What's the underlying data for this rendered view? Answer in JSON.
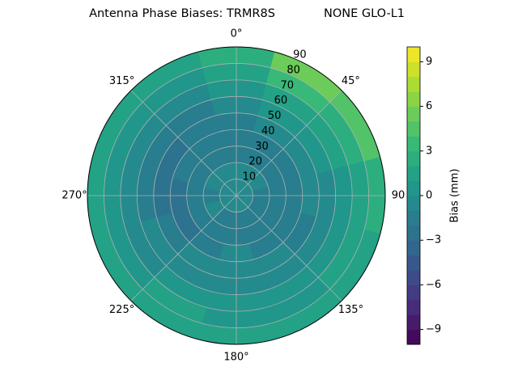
{
  "chart_data": {
    "type": "polar-contour",
    "title": "Antenna Phase Biases: TRMR8S",
    "subtitle": "NONE GLO-L1",
    "rlim": [
      0,
      90
    ],
    "rticks": [
      10,
      20,
      30,
      40,
      50,
      60,
      70,
      80,
      90
    ],
    "thetaticks": [
      {
        "value": 0,
        "label": "0°"
      },
      {
        "value": 45,
        "label": "45°"
      },
      {
        "value": 90,
        "label": "90"
      },
      {
        "value": 135,
        "label": "135°"
      },
      {
        "value": 180,
        "label": "180°"
      },
      {
        "value": 225,
        "label": "225°"
      },
      {
        "value": 270,
        "label": "270°"
      },
      {
        "value": 315,
        "label": "315°"
      }
    ],
    "azimuths": [
      0,
      30,
      60,
      90,
      120,
      150,
      180,
      210,
      240,
      270,
      300,
      330
    ],
    "radii": [
      5,
      15,
      25,
      35,
      45,
      55,
      65,
      75,
      85
    ],
    "values": [
      [
        -1,
        -1,
        -2,
        -2,
        -2,
        -1,
        0,
        1,
        2
      ],
      [
        -1,
        -1,
        -2,
        -2,
        -1,
        0,
        1,
        3,
        5
      ],
      [
        -1,
        -1,
        -2,
        -2,
        -1,
        0,
        1,
        2,
        4
      ],
      [
        -1,
        -2,
        -2,
        -2,
        -1,
        -1,
        0,
        1,
        2
      ],
      [
        -1,
        -2,
        -2,
        -2,
        -2,
        -1,
        0,
        1,
        1
      ],
      [
        -1,
        -2,
        -2,
        -2,
        -1,
        -1,
        0,
        0,
        1
      ],
      [
        -1,
        -2,
        -2,
        -1,
        -1,
        -1,
        0,
        0,
        1
      ],
      [
        -1,
        -2,
        -2,
        -2,
        -1,
        -1,
        0,
        1,
        1
      ],
      [
        -1,
        -1,
        -2,
        -3,
        -2,
        -1,
        -1,
        0,
        1
      ],
      [
        -1,
        -2,
        -2,
        -3,
        -3,
        -2,
        -1,
        0,
        1
      ],
      [
        -1,
        -1,
        -2,
        -2,
        -3,
        -2,
        -1,
        0,
        1
      ],
      [
        -1,
        -1,
        -2,
        -2,
        -2,
        -2,
        -1,
        0,
        1
      ]
    ],
    "colormap": "viridis",
    "clim": [
      -10,
      10
    ],
    "levels": 20,
    "colorbar_label": "Bias (mm)",
    "cticks": [
      {
        "value": -9,
        "label": "−9"
      },
      {
        "value": -6,
        "label": "−6"
      },
      {
        "value": -3,
        "label": "−3"
      },
      0,
      3,
      6,
      9
    ],
    "grid": true
  }
}
